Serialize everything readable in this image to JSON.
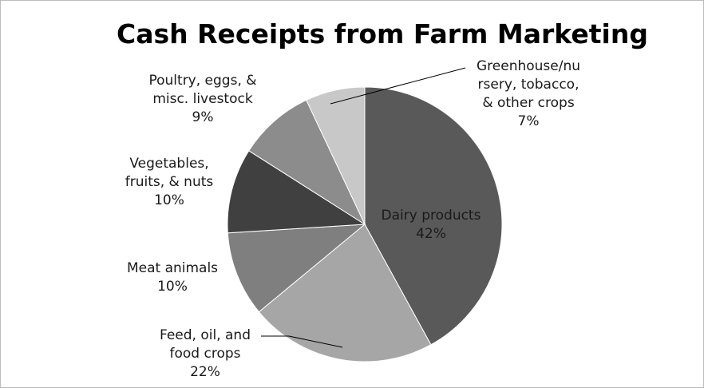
{
  "chart_data": {
    "type": "pie",
    "title": "Cash Receipts from Farm Marketing",
    "slices": [
      {
        "label_lines": [
          "Dairy products",
          "42%"
        ],
        "value": 42,
        "color": "#595959"
      },
      {
        "label_lines": [
          "Feed, oil, and",
          "food crops",
          "22%"
        ],
        "value": 22,
        "color": "#a6a6a6"
      },
      {
        "label_lines": [
          "Meat animals",
          "10%"
        ],
        "value": 10,
        "color": "#7f7f7f"
      },
      {
        "label_lines": [
          "Vegetables,",
          "fruits, & nuts",
          "10%"
        ],
        "value": 10,
        "color": "#404040"
      },
      {
        "label_lines": [
          "Poultry, eggs, &",
          "misc. livestock",
          "9%"
        ],
        "value": 9,
        "color": "#8c8c8c"
      },
      {
        "label_lines": [
          "Greenhouse/nu",
          "rsery, tobacco,",
          "& other crops",
          "7%"
        ],
        "value": 7,
        "color": "#c8c8c8"
      }
    ]
  }
}
